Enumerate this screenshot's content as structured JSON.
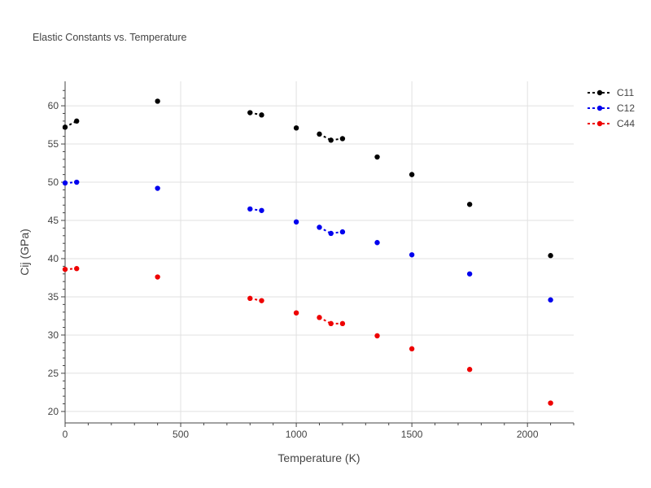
{
  "chart_data": {
    "type": "scatter",
    "title": "Elastic Constants vs. Temperature",
    "xlabel": "Temperature (K)",
    "ylabel": "Cij (GPa)",
    "xlim": [
      0,
      2200
    ],
    "ylim": [
      18.5,
      63.2
    ],
    "xticks": [
      0,
      500,
      1000,
      1500,
      2000
    ],
    "yticks": [
      20,
      25,
      30,
      35,
      40,
      45,
      50,
      55,
      60
    ],
    "grid": true,
    "legend_position": "top-right",
    "series": [
      {
        "name": "C11",
        "color": "#000000",
        "x": [
          0,
          50,
          400,
          800,
          850,
          1000,
          1100,
          1150,
          1200,
          1350,
          1500,
          1750,
          2100
        ],
        "y": [
          57.2,
          58.0,
          60.6,
          59.1,
          58.8,
          57.1,
          56.3,
          55.5,
          55.7,
          53.3,
          51.0,
          47.1,
          40.4
        ]
      },
      {
        "name": "C12",
        "color": "#0000ee",
        "x": [
          0,
          50,
          400,
          800,
          850,
          1000,
          1100,
          1150,
          1200,
          1350,
          1500,
          1750,
          2100
        ],
        "y": [
          49.9,
          50.0,
          49.2,
          46.5,
          46.3,
          44.8,
          44.1,
          43.3,
          43.5,
          42.1,
          40.5,
          38.0,
          34.6
        ]
      },
      {
        "name": "C44",
        "color": "#ee0000",
        "x": [
          0,
          50,
          400,
          800,
          850,
          1000,
          1100,
          1150,
          1200,
          1350,
          1500,
          1750,
          2100
        ],
        "y": [
          38.6,
          38.7,
          37.6,
          34.8,
          34.5,
          32.9,
          32.3,
          31.5,
          31.5,
          29.9,
          28.2,
          25.5,
          21.1
        ]
      }
    ],
    "dashed_segments": [
      [
        0,
        1
      ],
      [
        3,
        4
      ],
      [
        6,
        7
      ],
      [
        7,
        8
      ]
    ]
  }
}
